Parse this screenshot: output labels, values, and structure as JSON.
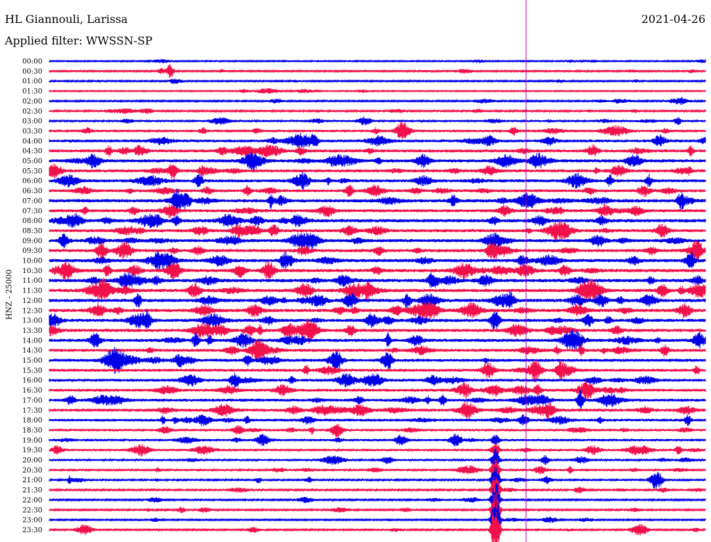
{
  "header": {
    "station": "HL Giannouli, Larissa",
    "filter": "Applied filter: WWSSN-SP",
    "date": "2021-04-26"
  },
  "colors": {
    "trace_even": "#0000e6",
    "trace_odd": "#f0104a",
    "marker_line": "#b000b0",
    "background": "#ffffff",
    "text": "#000000"
  },
  "chart_data": {
    "type": "helicorder",
    "ylabel": "HNZ - 25000",
    "row_labels": [
      "00:00",
      "00:30",
      "01:00",
      "01:30",
      "02:00",
      "02:30",
      "03:00",
      "03:30",
      "04:00",
      "04:30",
      "05:00",
      "05:30",
      "06:00",
      "06:30",
      "07:00",
      "07:30",
      "08:00",
      "08:30",
      "09:00",
      "09:30",
      "10:00",
      "10:30",
      "11:00",
      "11:30",
      "12:00",
      "12:30",
      "13:00",
      "13:30",
      "14:00",
      "14:30",
      "15:00",
      "15:30",
      "16:00",
      "16:30",
      "17:00",
      "17:30",
      "18:00",
      "18:30",
      "19:00",
      "19:30",
      "20:00",
      "20:30",
      "21:00",
      "21:30",
      "22:00",
      "22:30",
      "23:00",
      "23:30"
    ],
    "row_minutes": 30,
    "trace_colors_alternate": [
      "blue",
      "red"
    ],
    "row_amplitude_level": [
      0.15,
      0.2,
      0.2,
      0.12,
      0.25,
      0.3,
      0.45,
      0.6,
      0.7,
      0.75,
      0.8,
      0.75,
      0.75,
      0.7,
      0.85,
      0.75,
      0.85,
      0.75,
      0.8,
      0.8,
      0.85,
      0.85,
      0.85,
      0.85,
      0.85,
      0.85,
      0.8,
      0.8,
      0.8,
      0.75,
      0.75,
      0.7,
      0.7,
      0.7,
      0.7,
      0.75,
      0.65,
      0.55,
      0.5,
      0.5,
      0.45,
      0.45,
      0.35,
      0.3,
      0.25,
      0.25,
      0.2,
      0.25
    ],
    "large_event": {
      "row_start": "19:00",
      "minute_in_row": 20.4,
      "row_end": "23:30"
    },
    "marker_minute": 21.8
  }
}
